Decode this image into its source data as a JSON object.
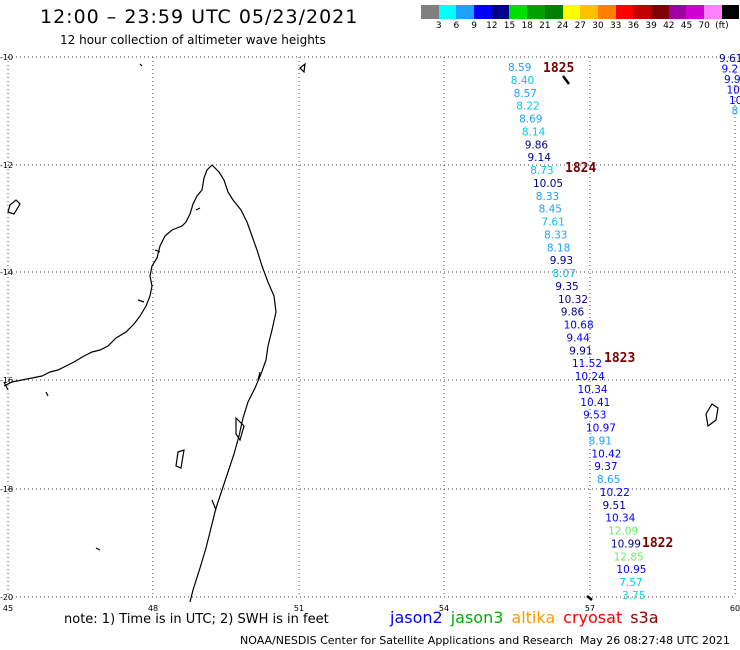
{
  "header": {
    "title": "12:00 – 23:59 UTC 05/23/2021",
    "subtitle": "12 hour collection of altimeter wave heights"
  },
  "scale": {
    "colors": [
      "#808080",
      "#00ffff",
      "#1ea0ff",
      "#0000ff",
      "#00008b",
      "#00e000",
      "#00a000",
      "#008000",
      "#ffff00",
      "#ffc000",
      "#ff8000",
      "#ff0000",
      "#c00000",
      "#800000",
      "#a000a0",
      "#d000d0",
      "#ff80ff",
      "#000000"
    ],
    "labels": [
      "3",
      "6",
      "9",
      "12",
      "15",
      "18",
      "21",
      "24",
      "27",
      "30",
      "33",
      "36",
      "39",
      "42",
      "45",
      "70",
      "(ft)"
    ]
  },
  "axes": {
    "lon_labels": [
      "45",
      "48",
      "51",
      "54",
      "57",
      "60"
    ],
    "lat_labels": [
      "-10",
      "-12",
      "-14",
      "-16",
      "-18",
      "-20"
    ]
  },
  "passes": [
    "1825",
    "1824",
    "1823",
    "1822"
  ],
  "track_points": [
    {
      "v": "8.59",
      "c": "#1ea0ff"
    },
    {
      "v": "8.40",
      "c": "#00c8e8"
    },
    {
      "v": "8.57",
      "c": "#1ea0ff"
    },
    {
      "v": "8.22",
      "c": "#00c8e8"
    },
    {
      "v": "8.69",
      "c": "#1ea0ff"
    },
    {
      "v": "8.14",
      "c": "#00c8e8"
    },
    {
      "v": "9.86",
      "c": "#00008b"
    },
    {
      "v": "9.14",
      "c": "#00008b"
    },
    {
      "v": "8.73",
      "c": "#00c8e8"
    },
    {
      "v": "10.05",
      "c": "#00008b"
    },
    {
      "v": "8.33",
      "c": "#1ea0ff"
    },
    {
      "v": "8.45",
      "c": "#1ea0ff"
    },
    {
      "v": "7.61",
      "c": "#00c8e8"
    },
    {
      "v": "8.33",
      "c": "#1ea0ff"
    },
    {
      "v": "8.18",
      "c": "#1ea0ff"
    },
    {
      "v": "9.93",
      "c": "#00008b"
    },
    {
      "v": "8.07",
      "c": "#00c8e8"
    },
    {
      "v": "9.35",
      "c": "#00008b"
    },
    {
      "v": "10.32",
      "c": "#00008b"
    },
    {
      "v": "9.86",
      "c": "#00008b"
    },
    {
      "v": "10.68",
      "c": "#0000ff"
    },
    {
      "v": "9.44",
      "c": "#0000ff"
    },
    {
      "v": "9.91",
      "c": "#00008b"
    },
    {
      "v": "11.52",
      "c": "#0000ff"
    },
    {
      "v": "10.24",
      "c": "#0000ff"
    },
    {
      "v": "10.34",
      "c": "#0000ff"
    },
    {
      "v": "10.41",
      "c": "#0000ff"
    },
    {
      "v": "9.53",
      "c": "#0000ff"
    },
    {
      "v": "10.97",
      "c": "#0000ff"
    },
    {
      "v": "8.91",
      "c": "#1ea0ff"
    },
    {
      "v": "10.42",
      "c": "#0000ff"
    },
    {
      "v": "9.37",
      "c": "#0000ff"
    },
    {
      "v": "8.65",
      "c": "#1ea0ff"
    },
    {
      "v": "10.22",
      "c": "#0000ff"
    },
    {
      "v": "9.51",
      "c": "#00008b"
    },
    {
      "v": "10.34",
      "c": "#0000ff"
    },
    {
      "v": "12.09",
      "c": "#66ee66"
    },
    {
      "v": "10.99",
      "c": "#00008b"
    },
    {
      "v": "12.85",
      "c": "#66ee66"
    },
    {
      "v": "10.95",
      "c": "#0000ff"
    },
    {
      "v": "7.57",
      "c": "#00c8e8"
    },
    {
      "v": "3.75",
      "c": "#00e0e0"
    }
  ],
  "right_edge_points": [
    {
      "v": "9.61",
      "c": "#00008b"
    },
    {
      "v": "9.2",
      "c": "#0000ff"
    },
    {
      "v": "9.9",
      "c": "#0000ff"
    },
    {
      "v": "10.",
      "c": "#0000ff"
    },
    {
      "v": "10",
      "c": "#0000ff"
    },
    {
      "v": "8",
      "c": "#1ea0ff"
    }
  ],
  "footer": {
    "note": "note:  1) Time is in UTC;  2) SWH is in feet",
    "satellites": [
      {
        "name": "jason2",
        "color": "#0000ff"
      },
      {
        "name": "jason3",
        "color": "#00b000"
      },
      {
        "name": "altika",
        "color": "#ff9900"
      },
      {
        "name": "cryosat",
        "color": "#ff0000"
      },
      {
        "name": "s3a",
        "color": "#8b0000"
      }
    ],
    "credit": "NOAA/NESDIS Center for Satellite Applications and Research",
    "timestamp": "May 26 08:27:48 UTC 2021"
  }
}
